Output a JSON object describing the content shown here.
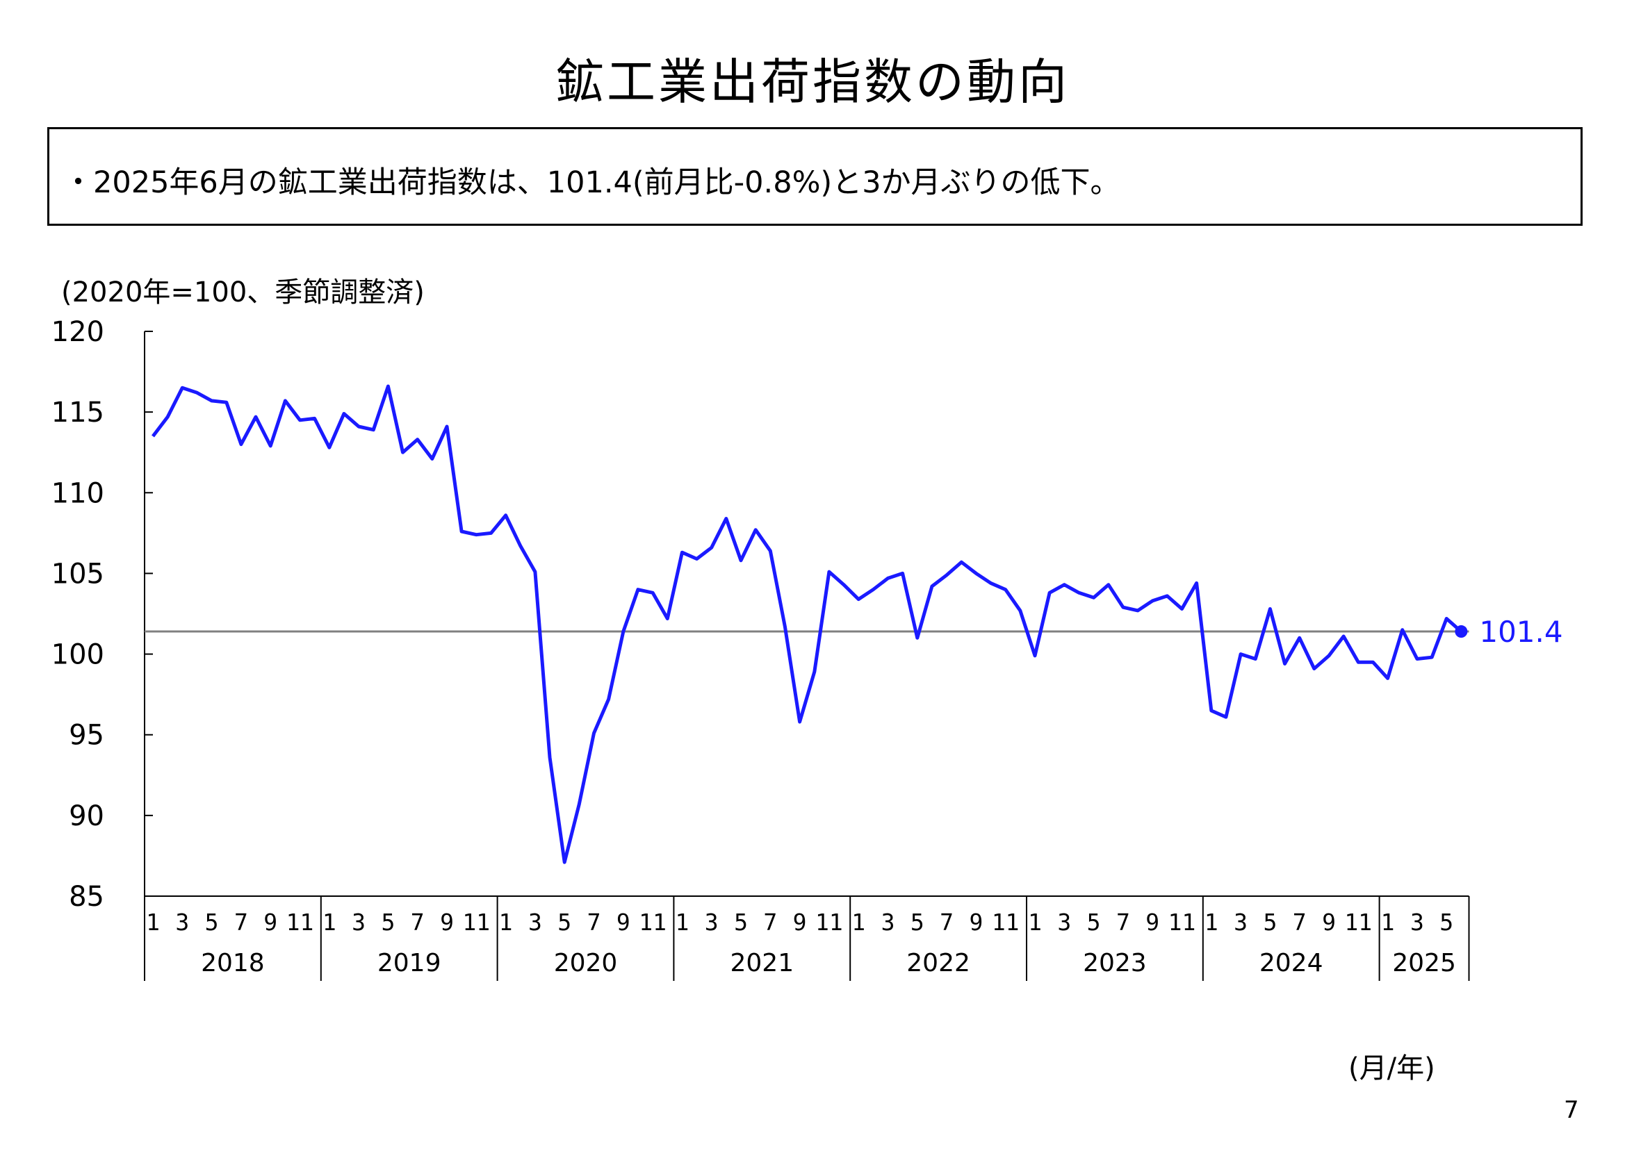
{
  "title": "鉱工業出荷指数の動向",
  "summary": "・2025年6月の鉱工業出荷指数は、101.4(前月比-0.8%)と3か月ぶりの低下。",
  "unit_note": "(2020年=100、季節調整済)",
  "x_unit": "(月/年)",
  "page_number": "7",
  "colors": {
    "series": "#1a1aff",
    "reference_line": "#808080",
    "axis": "#000000"
  },
  "chart_data": {
    "type": "line",
    "ylim": [
      85,
      120
    ],
    "yticks": [
      "85",
      "90",
      "95",
      "100",
      "105",
      "110",
      "115",
      "120"
    ],
    "years": [
      {
        "label": "2018",
        "months": 12
      },
      {
        "label": "2019",
        "months": 12
      },
      {
        "label": "2020",
        "months": 12
      },
      {
        "label": "2021",
        "months": 12
      },
      {
        "label": "2022",
        "months": 12
      },
      {
        "label": "2023",
        "months": 12
      },
      {
        "label": "2024",
        "months": 12
      },
      {
        "label": "2025",
        "months": 6
      }
    ],
    "month_tick_labels": [
      "1",
      "3",
      "5",
      "7",
      "9",
      "11"
    ],
    "month_tick_labels_2025": [
      "1",
      "3",
      "5"
    ],
    "series": [
      {
        "values": [
          113.5,
          114.7,
          116.5,
          116.2,
          115.7,
          115.6,
          113.0,
          114.7,
          112.9,
          115.7,
          114.5,
          114.6,
          112.8,
          114.9,
          114.1,
          113.9,
          116.6,
          112.5,
          113.3,
          112.1,
          114.1,
          107.6,
          107.4,
          107.5,
          108.6,
          106.7,
          105.1,
          93.6,
          87.1,
          90.7,
          95.1,
          97.2,
          101.4,
          104.0,
          103.8,
          102.2,
          106.3,
          105.9,
          106.6,
          108.4,
          105.8,
          107.7,
          106.4,
          101.7,
          95.8,
          98.9,
          105.1,
          104.3,
          103.4,
          104.0,
          104.7,
          105.0,
          101.0,
          104.2,
          104.9,
          105.7,
          105.0,
          104.4,
          104.0,
          102.7,
          99.9,
          103.8,
          104.3,
          103.8,
          103.5,
          104.3,
          102.9,
          102.7,
          103.3,
          103.6,
          102.8,
          104.4,
          96.5,
          96.1,
          100.0,
          99.7,
          102.8,
          99.4,
          101.0,
          99.1,
          99.9,
          101.1,
          99.5,
          99.5,
          98.5,
          101.5,
          99.7,
          99.8,
          102.2,
          101.4
        ]
      }
    ],
    "reference_value": 101.4,
    "last_value_label": "101.4"
  }
}
